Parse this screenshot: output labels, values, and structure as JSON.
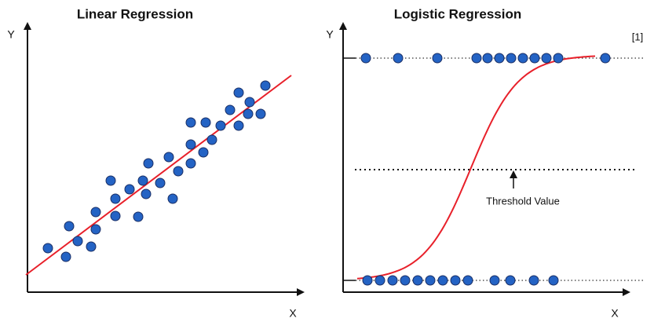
{
  "left": {
    "title": "Linear Regression",
    "y_label": "Y",
    "x_label": "X"
  },
  "right": {
    "title": "Logistic Regression",
    "y_label": "Y",
    "x_label": "X",
    "annotation": "Threshold Value",
    "citation": "[1]"
  }
}
